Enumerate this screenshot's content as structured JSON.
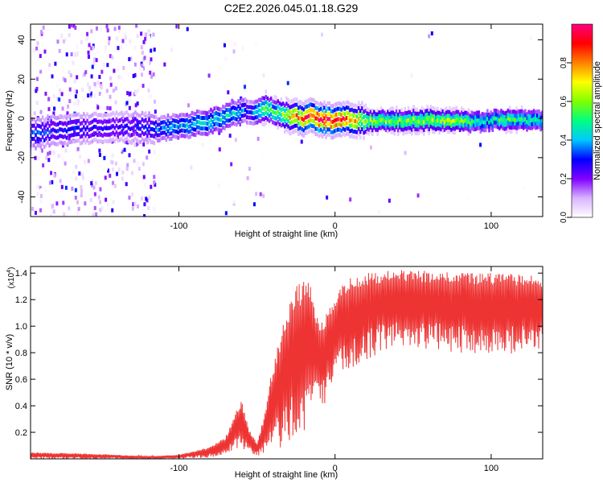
{
  "figure_title": "C2E2.2026.045.01.18.G29",
  "chart_data": [
    {
      "type": "heatmap",
      "title": "C2E2.2026.045.01.18.G29",
      "xlabel": "Height of straight line (km)",
      "ylabel": "Frequency (Hz)",
      "xlim": [
        -195,
        133
      ],
      "ylim": [
        -50,
        48
      ],
      "x_ticks": [
        -100,
        0,
        100
      ],
      "x_tick_labels": [
        "-100",
        "0",
        "100"
      ],
      "y_ticks": [
        -40,
        -20,
        0,
        20,
        40
      ],
      "y_tick_labels": [
        "-40",
        "-20",
        "0",
        "20",
        "40"
      ],
      "colorbar": {
        "label": "Normalized spectral amplitude",
        "range": [
          0,
          1
        ],
        "ticks": [
          0.0,
          0.2,
          0.4,
          0.6,
          0.8
        ],
        "tick_labels": [
          "0.0",
          "0.2",
          "0.4",
          "0.6",
          "0.8"
        ],
        "colors": [
          "#ffffff",
          "#d9b3ff",
          "#8000ff",
          "#0000ff",
          "#00c8ff",
          "#00ff80",
          "#80ff00",
          "#ffff00",
          "#ff8000",
          "#ff0000",
          "#ff0080"
        ]
      },
      "ridge": {
        "description": "dominant frequency track (Hz) vs height (km) with amplitude",
        "x": [
          -195,
          -180,
          -160,
          -140,
          -120,
          -110,
          -100,
          -90,
          -80,
          -70,
          -60,
          -55,
          -50,
          -45,
          -40,
          -35,
          -30,
          -25,
          -20,
          -15,
          -10,
          -5,
          0,
          5,
          10,
          20,
          40,
          60,
          80,
          90,
          100,
          110,
          120,
          133
        ],
        "freq": [
          -8,
          -6,
          -5,
          -4,
          -5,
          -5,
          -4,
          -3,
          -2,
          1,
          3,
          4,
          3,
          6,
          4,
          2,
          1,
          1,
          0,
          1,
          0,
          -1,
          -1,
          0,
          -1,
          -1,
          -1,
          -1,
          -1,
          -2,
          -1,
          -1,
          -1,
          -1
        ],
        "amplitude": [
          0.35,
          0.3,
          0.28,
          0.25,
          0.3,
          0.38,
          0.4,
          0.42,
          0.45,
          0.45,
          0.4,
          0.3,
          0.42,
          0.6,
          0.5,
          0.55,
          0.7,
          0.8,
          0.85,
          0.9,
          0.95,
          0.98,
          0.95,
          0.9,
          0.8,
          0.62,
          0.58,
          0.62,
          0.6,
          0.5,
          0.45,
          0.55,
          0.5,
          0.45
        ]
      }
    },
    {
      "type": "line",
      "xlabel": "Height of straight line (km)",
      "ylabel": "SNR (10 * v/v)",
      "scale_label": "(x10",
      "scale_exponent": "4",
      "scale_suffix": ")",
      "xlim": [
        -195,
        133
      ],
      "ylim": [
        0,
        1.45
      ],
      "x_ticks": [
        -100,
        0,
        100
      ],
      "x_tick_labels": [
        "-100",
        "0",
        "100"
      ],
      "y_ticks": [
        0.2,
        0.4,
        0.6,
        0.8,
        1.0,
        1.2,
        1.4
      ],
      "y_tick_labels": [
        "0.2",
        "0.4",
        "0.6",
        "0.8",
        "1.0",
        "1.2",
        "1.4"
      ],
      "series": [
        {
          "name": "SNR",
          "color": "#ee3333",
          "envelope_x": [
            -195,
            -160,
            -120,
            -100,
            -80,
            -70,
            -60,
            -55,
            -50,
            -45,
            -40,
            -35,
            -30,
            -25,
            -20,
            -15,
            -10,
            -5,
            0,
            5,
            10,
            15,
            20,
            30,
            40,
            60,
            80,
            100,
            120,
            133
          ],
          "envelope_upper": [
            0.05,
            0.04,
            0.02,
            0.03,
            0.09,
            0.17,
            0.45,
            0.22,
            0.12,
            0.35,
            0.7,
            0.95,
            1.15,
            1.3,
            1.35,
            1.32,
            1.0,
            1.12,
            1.2,
            1.32,
            1.38,
            1.4,
            1.4,
            1.42,
            1.43,
            1.42,
            1.4,
            1.4,
            1.39,
            1.38
          ],
          "envelope_lower": [
            0.0,
            0.0,
            0.0,
            0.0,
            0.01,
            0.02,
            0.06,
            0.03,
            0.02,
            0.03,
            0.04,
            0.06,
            0.1,
            0.15,
            0.2,
            0.28,
            0.35,
            0.45,
            0.55,
            0.62,
            0.65,
            0.7,
            0.75,
            0.8,
            0.85,
            0.82,
            0.8,
            0.78,
            0.8,
            0.8
          ]
        }
      ]
    }
  ]
}
